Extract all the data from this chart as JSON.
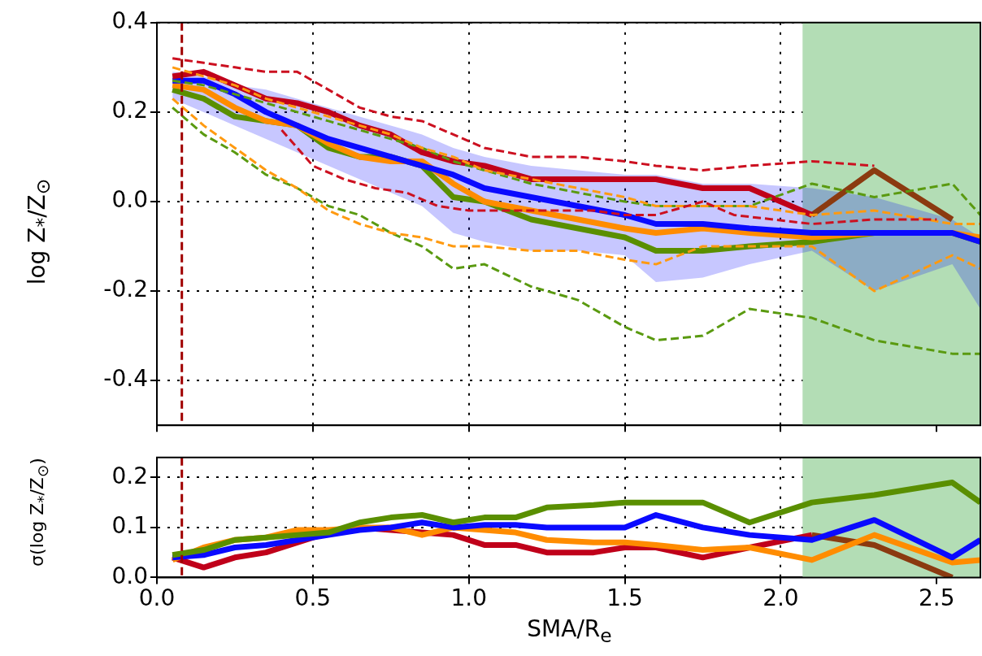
{
  "chart_data": [
    {
      "type": "line",
      "ylabel": "log Z$_{*}$/Z$_{⊙}$",
      "xlim": [
        0,
        2.64
      ],
      "ylim": [
        -0.5,
        0.4
      ],
      "xticks": [
        0,
        0.5,
        1,
        1.5,
        2,
        2.5
      ],
      "yticks": [
        -0.4,
        -0.2,
        {
          "value": 0,
          "label": "0.0"
        },
        0.2,
        0.4
      ],
      "tick_labels": "y",
      "grid": true,
      "bands": [
        {
          "axis": "x",
          "from": 2.07,
          "to": 2.64,
          "color": "#b3ddb5"
        }
      ],
      "ref_lines": [
        {
          "axis": "x",
          "value": 0.08,
          "color": "#a00000",
          "line_style": "dashed"
        }
      ],
      "series": [
        {
          "color": "#c0001a",
          "x": [
            0.05,
            0.15,
            0.25,
            0.35,
            0.45,
            0.55,
            0.65,
            0.75,
            0.85,
            0.95,
            1.05,
            1.2,
            1.35,
            1.5,
            1.6,
            1.75,
            1.9,
            2.1
          ],
          "values": [
            0.28,
            0.29,
            0.26,
            0.23,
            0.22,
            0.2,
            0.17,
            0.15,
            0.11,
            0.09,
            0.08,
            0.05,
            0.05,
            0.05,
            0.05,
            0.03,
            0.03,
            -0.03
          ]
        },
        {
          "color": "#8b3a10",
          "x": [
            2.1,
            2.3,
            2.55
          ],
          "values": [
            -0.03,
            0.07,
            -0.04
          ]
        },
        {
          "color": "#0a0aff",
          "x": [
            0.05,
            0.15,
            0.25,
            0.35,
            0.45,
            0.55,
            0.65,
            0.75,
            0.85,
            0.95,
            1.05,
            1.2,
            1.35,
            1.5,
            1.6,
            1.75,
            1.9,
            2.1,
            2.3,
            2.55,
            2.64
          ],
          "values": [
            0.27,
            0.27,
            0.24,
            0.2,
            0.17,
            0.14,
            0.12,
            0.1,
            0.08,
            0.06,
            0.03,
            0.01,
            -0.01,
            -0.03,
            -0.05,
            -0.05,
            -0.06,
            -0.07,
            -0.07,
            -0.07,
            -0.09
          ],
          "lower": [
            0.23,
            0.2,
            0.17,
            0.14,
            0.11,
            0.08,
            0.05,
            0.02,
            -0.01,
            -0.07,
            -0.09,
            -0.11,
            -0.11,
            -0.12,
            -0.18,
            -0.17,
            -0.14,
            -0.11,
            -0.2,
            -0.14,
            -0.24
          ],
          "upper": [
            0.29,
            0.28,
            0.26,
            0.25,
            0.23,
            0.21,
            0.19,
            0.17,
            0.15,
            0.12,
            0.1,
            0.08,
            0.07,
            0.06,
            0.06,
            0.04,
            0.04,
            0.03,
            0.01,
            -0.04,
            -0.08
          ]
        },
        {
          "color": "#ff8c00",
          "x": [
            0.05,
            0.15,
            0.25,
            0.35,
            0.45,
            0.55,
            0.65,
            0.75,
            0.85,
            0.95,
            1.05,
            1.2,
            1.35,
            1.5,
            1.6,
            1.75,
            1.9,
            2.1,
            2.3,
            2.55,
            2.64
          ],
          "values": [
            0.26,
            0.25,
            0.21,
            0.18,
            0.17,
            0.13,
            0.1,
            0.09,
            0.09,
            0.04,
            0.0,
            -0.02,
            -0.04,
            -0.06,
            -0.07,
            -0.06,
            -0.07,
            -0.08,
            -0.07,
            -0.07,
            -0.08
          ]
        },
        {
          "color": "#5a8f00",
          "x": [
            0.05,
            0.15,
            0.25,
            0.35,
            0.45,
            0.55,
            0.65,
            0.75,
            0.85,
            0.95,
            1.05,
            1.2,
            1.35,
            1.5,
            1.6,
            1.75,
            1.9,
            2.1,
            2.3,
            2.55,
            2.64
          ],
          "values": [
            0.25,
            0.23,
            0.19,
            0.18,
            0.17,
            0.12,
            0.1,
            0.1,
            0.08,
            0.01,
            0.0,
            -0.04,
            -0.06,
            -0.08,
            -0.11,
            -0.11,
            -0.1,
            -0.09,
            -0.07,
            -0.07,
            -0.09
          ]
        },
        {
          "color": "#cc1020",
          "line_style": "dashed",
          "x": [
            0.05,
            0.15,
            0.25,
            0.35,
            0.45,
            0.55,
            0.65,
            0.75,
            0.85,
            0.95,
            1.05,
            1.2,
            1.35,
            1.5,
            1.6,
            1.75,
            1.9,
            2.1,
            2.3
          ],
          "values": [
            0.32,
            0.31,
            0.3,
            0.29,
            0.29,
            0.25,
            0.21,
            0.19,
            0.18,
            0.15,
            0.12,
            0.1,
            0.1,
            0.09,
            0.08,
            0.07,
            0.08,
            0.09,
            0.08
          ]
        },
        {
          "color": "#cc1020",
          "line_style": "dashed",
          "x": [
            0.4,
            0.5,
            0.6,
            0.7,
            0.8,
            0.9,
            1.0,
            1.2,
            1.4,
            1.5,
            1.6,
            1.75,
            1.85,
            2.1,
            2.3,
            2.5
          ],
          "values": [
            0.16,
            0.08,
            0.05,
            0.03,
            0.02,
            -0.01,
            -0.02,
            -0.02,
            -0.02,
            -0.03,
            -0.03,
            0.0,
            -0.03,
            -0.05,
            -0.04,
            -0.04
          ]
        },
        {
          "color": "#ff9a10",
          "line_style": "dashed",
          "x": [
            0.05,
            0.15,
            0.25,
            0.35,
            0.45,
            0.55,
            0.65,
            0.75,
            0.85,
            0.95,
            1.05,
            1.2,
            1.35,
            1.5,
            1.6,
            1.75,
            1.9,
            2.1,
            2.3,
            2.55,
            2.64
          ],
          "values": [
            0.3,
            0.28,
            0.26,
            0.23,
            0.21,
            0.19,
            0.17,
            0.15,
            0.12,
            0.1,
            0.07,
            0.05,
            0.03,
            0.01,
            -0.01,
            -0.01,
            -0.01,
            -0.03,
            -0.02,
            -0.05,
            -0.05
          ]
        },
        {
          "color": "#ff9a10",
          "line_style": "dashed",
          "x": [
            0.05,
            0.15,
            0.25,
            0.35,
            0.45,
            0.55,
            0.65,
            0.75,
            0.85,
            0.95,
            1.05,
            1.2,
            1.35,
            1.5,
            1.6,
            1.75,
            1.9,
            2.1,
            2.3,
            2.55,
            2.64
          ],
          "values": [
            0.23,
            0.17,
            0.12,
            0.07,
            0.03,
            -0.02,
            -0.05,
            -0.07,
            -0.08,
            -0.1,
            -0.1,
            -0.11,
            -0.11,
            -0.13,
            -0.14,
            -0.1,
            -0.1,
            -0.1,
            -0.2,
            -0.12,
            -0.15
          ]
        },
        {
          "color": "#5a9a10",
          "line_style": "dashed",
          "x": [
            0.05,
            0.15,
            0.25,
            0.35,
            0.45,
            0.55,
            0.65,
            0.75,
            0.85,
            0.95,
            1.05,
            1.2,
            1.35,
            1.5,
            1.6,
            1.75,
            1.9,
            2.1,
            2.3,
            2.55,
            2.64
          ],
          "values": [
            0.27,
            0.26,
            0.24,
            0.22,
            0.2,
            0.18,
            0.16,
            0.14,
            0.12,
            0.09,
            0.07,
            0.04,
            0.02,
            0.0,
            -0.01,
            -0.01,
            -0.01,
            0.04,
            0.01,
            0.04,
            -0.03
          ]
        },
        {
          "color": "#5a9a10",
          "line_style": "dashed",
          "x": [
            0.05,
            0.15,
            0.25,
            0.35,
            0.45,
            0.55,
            0.65,
            0.75,
            0.85,
            0.95,
            1.05,
            1.2,
            1.35,
            1.5,
            1.6,
            1.75,
            1.9,
            2.1,
            2.3,
            2.55,
            2.64
          ],
          "values": [
            0.21,
            0.15,
            0.11,
            0.06,
            0.03,
            -0.01,
            -0.03,
            -0.07,
            -0.1,
            -0.15,
            -0.14,
            -0.19,
            -0.22,
            -0.28,
            -0.31,
            -0.3,
            -0.24,
            -0.26,
            -0.31,
            -0.34,
            -0.34
          ]
        }
      ]
    },
    {
      "type": "line",
      "xlabel": "SMA/R$_{e}$",
      "ylabel": "σ(log Z$_{*}$/Z$_{⊙}$)",
      "xlim": [
        0,
        2.64
      ],
      "ylim": [
        0,
        0.24
      ],
      "xticks": [
        {
          "value": 0,
          "label": "0.0"
        },
        0.5,
        {
          "value": 1,
          "label": "1.0"
        },
        1.5,
        {
          "value": 2,
          "label": "2.0"
        },
        2.5
      ],
      "yticks": [
        {
          "value": 0,
          "label": "0.0"
        },
        0.1,
        0.2
      ],
      "grid": true,
      "bands": [
        {
          "axis": "x",
          "from": 2.07,
          "to": 2.64,
          "color": "#b3ddb5"
        }
      ],
      "ref_lines": [
        {
          "axis": "x",
          "value": 0.08,
          "color": "#a00000",
          "line_style": "dashed"
        }
      ],
      "series": [
        {
          "color": "#5a8f00",
          "x": [
            0.05,
            0.15,
            0.25,
            0.35,
            0.45,
            0.55,
            0.65,
            0.75,
            0.85,
            0.95,
            1.05,
            1.15,
            1.25,
            1.4,
            1.5,
            1.6,
            1.75,
            1.9,
            2.1,
            2.3,
            2.55,
            2.64
          ],
          "values": [
            0.045,
            0.055,
            0.075,
            0.08,
            0.085,
            0.09,
            0.11,
            0.12,
            0.125,
            0.11,
            0.12,
            0.12,
            0.14,
            0.145,
            0.15,
            0.15,
            0.15,
            0.11,
            0.15,
            0.165,
            0.19,
            0.15
          ]
        },
        {
          "color": "#0a0aff",
          "x": [
            0.05,
            0.15,
            0.25,
            0.35,
            0.45,
            0.55,
            0.65,
            0.75,
            0.85,
            0.95,
            1.05,
            1.15,
            1.25,
            1.4,
            1.5,
            1.6,
            1.75,
            1.9,
            2.1,
            2.3,
            2.55,
            2.64
          ],
          "values": [
            0.04,
            0.045,
            0.06,
            0.065,
            0.075,
            0.085,
            0.095,
            0.1,
            0.11,
            0.1,
            0.105,
            0.105,
            0.1,
            0.1,
            0.1,
            0.125,
            0.1,
            0.085,
            0.075,
            0.115,
            0.04,
            0.075
          ]
        },
        {
          "color": "#ff8c00",
          "x": [
            0.05,
            0.15,
            0.25,
            0.35,
            0.45,
            0.55,
            0.65,
            0.75,
            0.85,
            0.95,
            1.05,
            1.15,
            1.25,
            1.4,
            1.5,
            1.6,
            1.75,
            1.9,
            2.1,
            2.3,
            2.55,
            2.64
          ],
          "values": [
            0.035,
            0.06,
            0.075,
            0.08,
            0.095,
            0.095,
            0.1,
            0.1,
            0.085,
            0.1,
            0.095,
            0.09,
            0.075,
            0.07,
            0.07,
            0.065,
            0.055,
            0.06,
            0.035,
            0.085,
            0.03,
            0.035
          ]
        },
        {
          "color": "#c0001a",
          "x": [
            0.05,
            0.15,
            0.25,
            0.35,
            0.45,
            0.55,
            0.65,
            0.75,
            0.85,
            0.95,
            1.05,
            1.15,
            1.25,
            1.4,
            1.5,
            1.6,
            1.75,
            1.9,
            2.1
          ],
          "values": [
            0.04,
            0.02,
            0.04,
            0.05,
            0.07,
            0.09,
            0.1,
            0.095,
            0.09,
            0.085,
            0.065,
            0.065,
            0.05,
            0.05,
            0.06,
            0.06,
            0.04,
            0.06,
            0.085
          ]
        },
        {
          "color": "#8b3a10",
          "x": [
            2.1,
            2.3,
            2.55
          ],
          "values": [
            0.085,
            0.065,
            0.0
          ]
        }
      ]
    }
  ]
}
